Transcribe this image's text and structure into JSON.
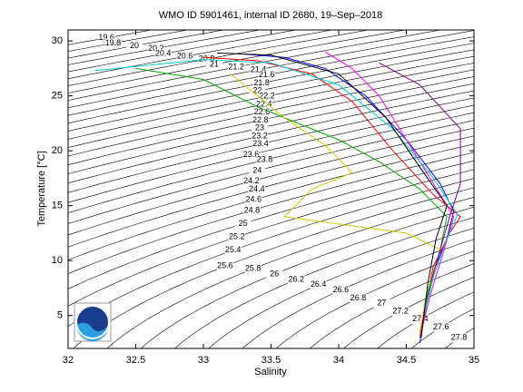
{
  "chart_data": {
    "type": "line",
    "title": "WMO ID 5901461, internal ID 2680, 19–Sep–2018",
    "x_label": "Salinity",
    "y_label": "Temperature [°C]",
    "xlim": [
      32,
      35
    ],
    "ylim": [
      2,
      31
    ],
    "xticks": [
      32,
      32.5,
      33,
      33.5,
      34,
      34.5,
      35
    ],
    "yticks": [
      5,
      10,
      15,
      20,
      25,
      30
    ],
    "density_contours": [
      19.6,
      19.8,
      20,
      20.2,
      20.4,
      20.6,
      20.8,
      21,
      21.2,
      21.4,
      21.6,
      21.8,
      22,
      22.2,
      22.4,
      22.6,
      22.8,
      23,
      23.2,
      23.4,
      23.6,
      23.8,
      24,
      24.2,
      24.4,
      24.6,
      24.8,
      25,
      25.2,
      25.4,
      25.6,
      25.8,
      26,
      26.2,
      26.4,
      26.6,
      26.8,
      27,
      27.2,
      27.4,
      27.6,
      27.8
    ],
    "series": [
      {
        "color": "#0000ff",
        "x": [
          33.3,
          33.6,
          33.9,
          34.2,
          34.5,
          34.75,
          34.85,
          34.8,
          34.7,
          34.65,
          34.62,
          34.6
        ],
        "values": [
          28.8,
          28.5,
          27.5,
          25,
          21,
          17,
          14.5,
          12,
          9,
          6,
          4,
          2.5
        ]
      },
      {
        "color": "#ff0000",
        "x": [
          33.0,
          33.4,
          33.8,
          34.1,
          34.4,
          34.7,
          34.9,
          34.82,
          34.7,
          34.64,
          34.6
        ],
        "values": [
          28.5,
          28.2,
          27,
          24.5,
          20,
          16,
          14,
          12.5,
          9.5,
          6,
          3
        ]
      },
      {
        "color": "#00aa00",
        "x": [
          32.5,
          33.0,
          33.4,
          33.7,
          34.0,
          34.3,
          34.6,
          34.8,
          34.75,
          34.66,
          34.62
        ],
        "values": [
          27.5,
          26.5,
          24,
          22.5,
          21,
          19,
          16.5,
          14,
          11,
          7,
          4
        ]
      },
      {
        "color": "#cccc00",
        "x": [
          33.2,
          33.6,
          33.9,
          34.1,
          33.8,
          33.6,
          34.2,
          34.5,
          34.75,
          34.65,
          34.6
        ],
        "values": [
          27,
          23,
          20.5,
          18,
          16.5,
          14,
          13,
          12.5,
          11,
          7,
          3.5
        ]
      },
      {
        "color": "#ff00ff",
        "x": [
          33.9,
          34.1,
          34.3,
          34.5,
          34.7,
          34.85,
          34.78,
          34.68,
          34.62
        ],
        "values": [
          29,
          27.5,
          25,
          21,
          17,
          14,
          11,
          7,
          4
        ]
      },
      {
        "color": "#00cccc",
        "x": [
          32.2,
          33.0,
          33.5,
          34.0,
          34.4,
          34.7,
          34.88,
          34.8,
          34.7,
          34.63
        ],
        "values": [
          27.3,
          28.3,
          28.0,
          26,
          22,
          17.5,
          14.2,
          12,
          8.5,
          5
        ]
      },
      {
        "color": "#800080",
        "x": [
          34.3,
          34.6,
          34.9,
          34.9,
          34.82,
          34.75,
          34.68
        ],
        "values": [
          28,
          26,
          22,
          17,
          14,
          11,
          8
        ]
      },
      {
        "color": "#000000",
        "x": [
          33.1,
          33.5,
          34.0,
          34.35,
          34.6,
          34.8,
          34.72,
          34.66,
          34.61
        ],
        "values": [
          28.9,
          28.7,
          27,
          23,
          18.5,
          15,
          12,
          8,
          3
        ]
      }
    ]
  }
}
